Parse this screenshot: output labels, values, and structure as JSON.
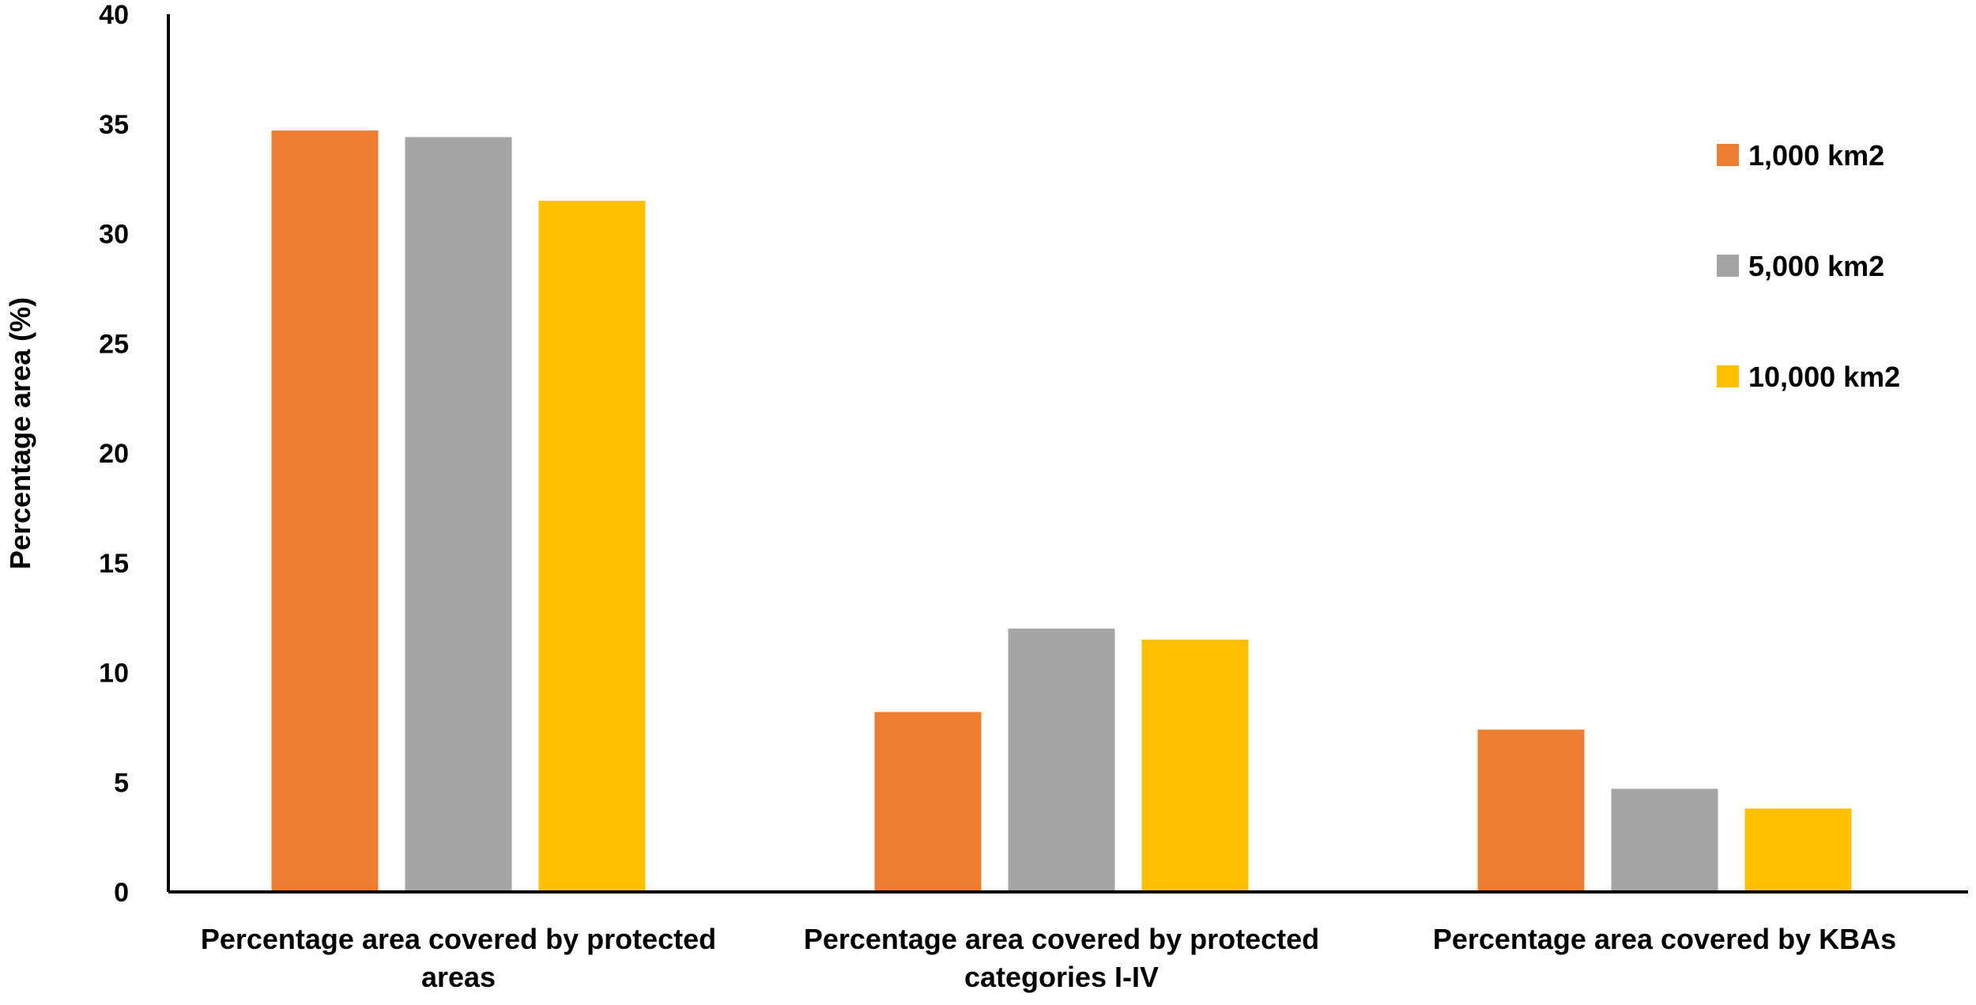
{
  "chart_data": {
    "type": "bar",
    "title": "",
    "xlabel": "",
    "ylabel": "Percentage area (%)",
    "ylim": [
      0,
      40
    ],
    "yticks": [
      0,
      5,
      10,
      15,
      20,
      25,
      30,
      35,
      40
    ],
    "grid": false,
    "legend_position": "right",
    "categories": [
      [
        "Percentage area covered by protected",
        "areas"
      ],
      [
        "Percentage area covered by protected",
        "categories I-IV"
      ],
      [
        "Percentage area covered by KBAs"
      ]
    ],
    "series": [
      {
        "name": "1,000 km2",
        "color": "#ED7D31",
        "values": [
          34.7,
          8.2,
          7.4
        ]
      },
      {
        "name": "5,000 km2",
        "color": "#A5A5A5",
        "values": [
          34.4,
          12.0,
          4.7
        ]
      },
      {
        "name": "10,000 km2",
        "color": "#FFC000",
        "values": [
          31.5,
          11.5,
          3.8
        ]
      }
    ]
  }
}
